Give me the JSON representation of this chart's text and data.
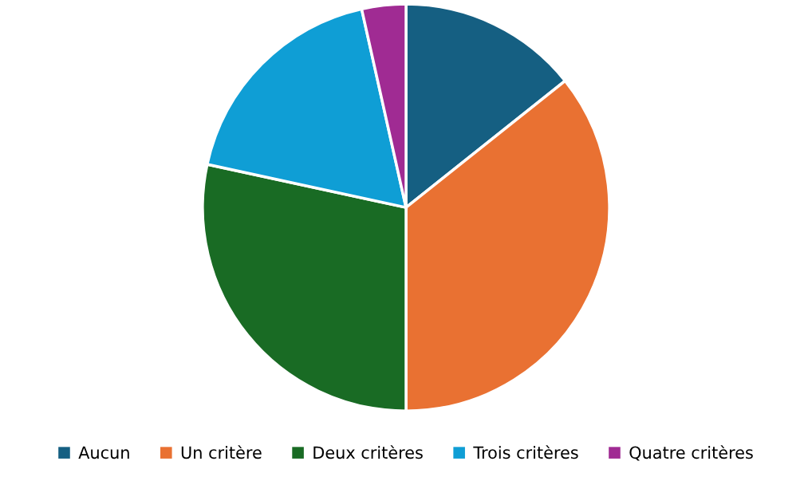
{
  "chart_data": {
    "type": "pie",
    "categories": [
      "Aucun",
      "Un critère",
      "Deux critères",
      "Trois critères",
      "Quatre critères"
    ],
    "values": [
      14.3,
      35.7,
      28.4,
      18.1,
      3.5
    ],
    "colors": [
      "#155f82",
      "#e97132",
      "#196b24",
      "#0f9ed5",
      "#a02b93"
    ],
    "legend": "bottom"
  }
}
